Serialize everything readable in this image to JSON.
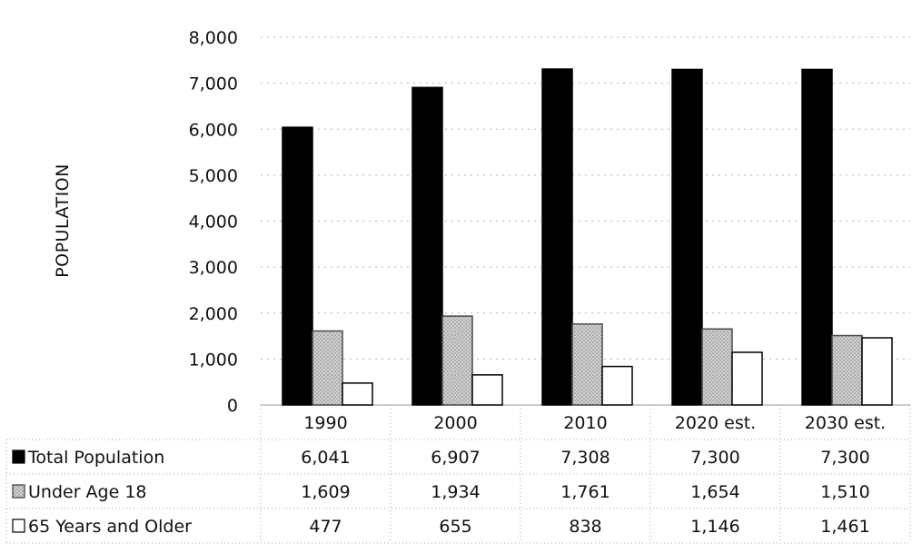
{
  "chart_data": {
    "type": "bar",
    "ylabel": "POPULATION",
    "ylim": [
      0,
      8000
    ],
    "yticks": [
      "0",
      "1,000",
      "2,000",
      "3,000",
      "4,000",
      "5,000",
      "6,000",
      "7,000",
      "8,000"
    ],
    "grid": "horizontal dotted",
    "categories": [
      "1990",
      "2000",
      "2010",
      "2020 est.",
      "2030 est."
    ],
    "legend_position": "data-table",
    "series": [
      {
        "name": "Total Population",
        "values": [
          6041,
          6907,
          7308,
          7300,
          7300
        ],
        "labels": [
          "6,041",
          "6,907",
          "7,308",
          "7,300",
          "7,300"
        ],
        "color": "#000000",
        "style": "solid black"
      },
      {
        "name": "Under Age 18",
        "values": [
          1609,
          1934,
          1761,
          1654,
          1510
        ],
        "labels": [
          "1,609",
          "1,934",
          "1,761",
          "1,654",
          "1,510"
        ],
        "color": "#c8c8c8",
        "style": "gray stippled"
      },
      {
        "name": "65 Years and Older",
        "values": [
          477,
          655,
          838,
          1146,
          1461
        ],
        "labels": [
          "477",
          "655",
          "838",
          "1,146",
          "1,461"
        ],
        "color": "#ffffff",
        "style": "white outlined"
      }
    ]
  }
}
